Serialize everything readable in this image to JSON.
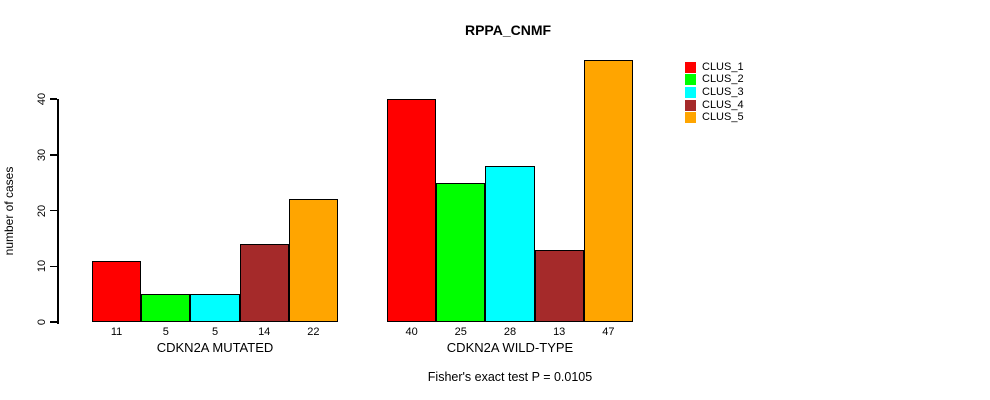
{
  "title": "RPPA_CNMF",
  "ylabel": "number of cases",
  "footer": "Fisher's exact test P = 0.0105",
  "legend": {
    "items": [
      {
        "label": "CLUS_1",
        "color": "#FF0000"
      },
      {
        "label": "CLUS_2",
        "color": "#00FF00"
      },
      {
        "label": "CLUS_3",
        "color": "#00FFFF"
      },
      {
        "label": "CLUS_4",
        "color": "#A52A2A"
      },
      {
        "label": "CLUS_5",
        "color": "#FFA500"
      }
    ]
  },
  "chart_data": {
    "type": "bar",
    "title": "RPPA_CNMF",
    "ylabel": "number of cases",
    "xlabel": "",
    "categories": [
      "CDKN2A MUTATED",
      "CDKN2A WILD-TYPE"
    ],
    "series": [
      {
        "name": "CLUS_1",
        "color": "#FF0000",
        "values": [
          11,
          40
        ]
      },
      {
        "name": "CLUS_2",
        "color": "#00FF00",
        "values": [
          5,
          25
        ]
      },
      {
        "name": "CLUS_3",
        "color": "#00FFFF",
        "values": [
          5,
          28
        ]
      },
      {
        "name": "CLUS_4",
        "color": "#A52A2A",
        "values": [
          14,
          13
        ]
      },
      {
        "name": "CLUS_5",
        "color": "#FFA500",
        "values": [
          22,
          47
        ]
      }
    ],
    "bar_value_labels": [
      [
        "11",
        "5",
        "5",
        "14",
        "22"
      ],
      [
        "40",
        "25",
        "28",
        "13",
        "47"
      ]
    ],
    "yticks": [
      0,
      10,
      20,
      30,
      40
    ],
    "ylim": [
      0,
      47
    ],
    "grid": false,
    "legend_position": "right-outside",
    "annotation": "Fisher's exact test P = 0.0105"
  }
}
